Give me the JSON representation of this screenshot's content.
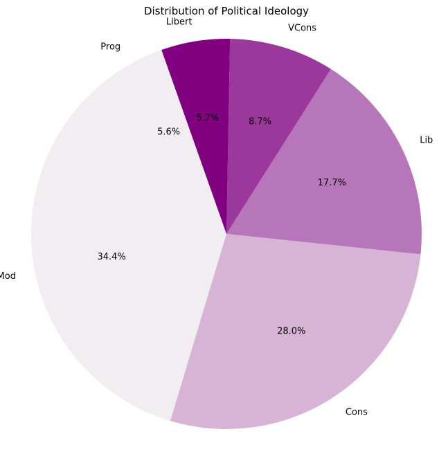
{
  "chart_data": {
    "type": "pie",
    "title": "Distribution of Political Ideology",
    "slices": [
      {
        "label": "Lib",
        "value": 17.7,
        "pct_text": "17.7%",
        "color": "#b876ba"
      },
      {
        "label": "VCons",
        "value": 8.7,
        "pct_text": "8.7%",
        "color": "#9a389c"
      },
      {
        "label": "Libert",
        "value": 5.7,
        "pct_text": "5.7%",
        "color": "#800080"
      },
      {
        "label": "Prog",
        "value": 5.6,
        "pct_text": "5.6%",
        "color": "#f1edf1"
      },
      {
        "label": "Mod",
        "value": 34.4,
        "pct_text": "34.4%",
        "color": "#f1edf1"
      },
      {
        "label": "Cons",
        "value": 28.0,
        "pct_text": "28.0%",
        "color": "#d7b3d5"
      }
    ],
    "start_angle_deg": -6,
    "direction": "counterclockwise"
  }
}
